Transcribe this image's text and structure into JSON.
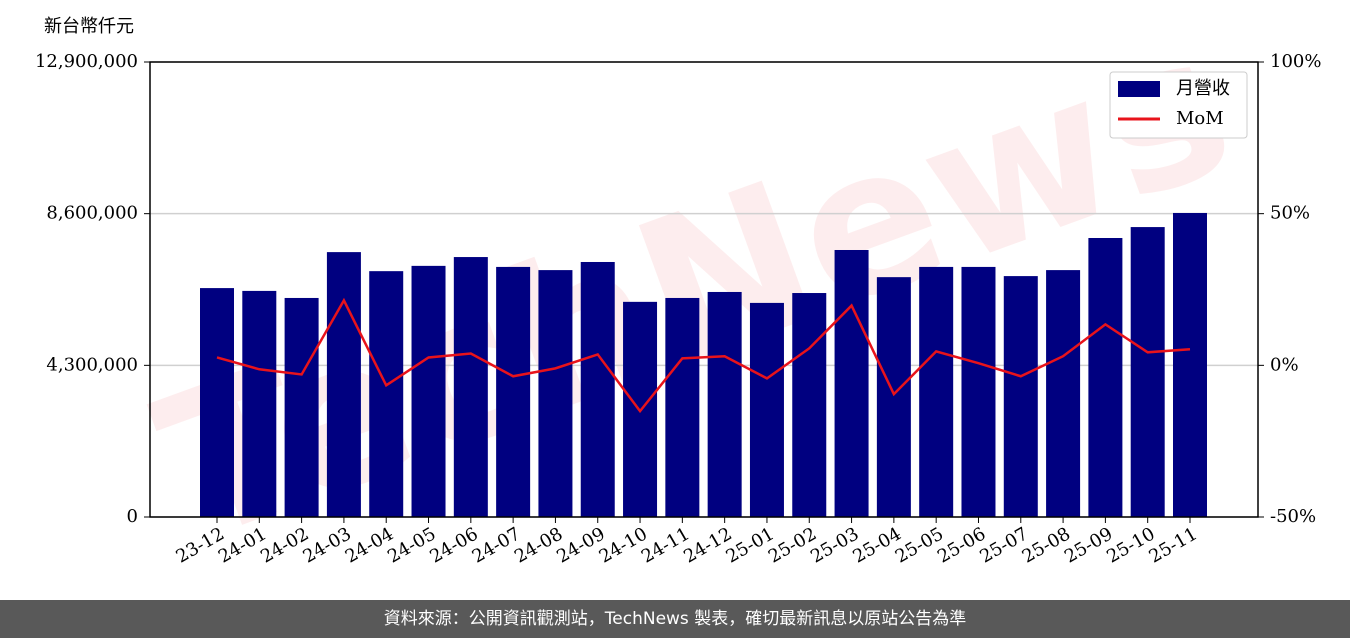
{
  "chart_data": {
    "type": "bar_line",
    "y_unit_label": "新台幣仟元",
    "watermark": "TechNews",
    "footer": "資料來源：公開資訊觀測站，TechNews 製表，確切最新訊息以原站公告為準",
    "categories": [
      "23-12",
      "24-01",
      "24-02",
      "24-03",
      "24-04",
      "24-05",
      "24-06",
      "24-07",
      "24-08",
      "24-09",
      "24-10",
      "24-11",
      "24-12",
      "25-01",
      "25-02",
      "25-03",
      "25-04",
      "25-05",
      "25-06",
      "25-07",
      "25-08",
      "25-09",
      "25-10",
      "25-11"
    ],
    "series": [
      {
        "name": "月營收",
        "type": "bar",
        "color": "#000080",
        "values": [
          6490000,
          6410000,
          6210000,
          7510000,
          6970000,
          7120000,
          7370000,
          7090000,
          7000000,
          7230000,
          6100000,
          6210000,
          6380000,
          6070000,
          6350000,
          7570000,
          6800000,
          7090000,
          7090000,
          6830000,
          7000000,
          7910000,
          8220000,
          8620000
        ]
      },
      {
        "name": "MoM",
        "type": "line",
        "axis": "y2",
        "color": "#e8131b",
        "values": [
          2.6,
          -1.3,
          -3,
          21.4,
          -6.6,
          2.6,
          3.9,
          -3.6,
          -1,
          3.6,
          -15.1,
          2.3,
          3,
          -4.3,
          5.6,
          19.7,
          -9.5,
          4.6,
          0.7,
          -3.6,
          3,
          13.5,
          4.3,
          5.3
        ]
      }
    ],
    "ylim": [
      0,
      12900000
    ],
    "yticks": [
      0,
      {
        "value": 4300000,
        "label": "4,300,000"
      },
      {
        "value": 8600000,
        "label": "8,600,000"
      },
      {
        "value": 12900000,
        "label": "12,900,000"
      }
    ],
    "y2lim": [
      -50,
      100
    ],
    "y2ticks": [
      {
        "value": -50,
        "label": "-50%"
      },
      {
        "value": 0,
        "label": "0%"
      },
      {
        "value": 50,
        "label": "50%"
      },
      {
        "value": 100,
        "label": "100%"
      }
    ],
    "grid": true,
    "legend": "upper right"
  }
}
